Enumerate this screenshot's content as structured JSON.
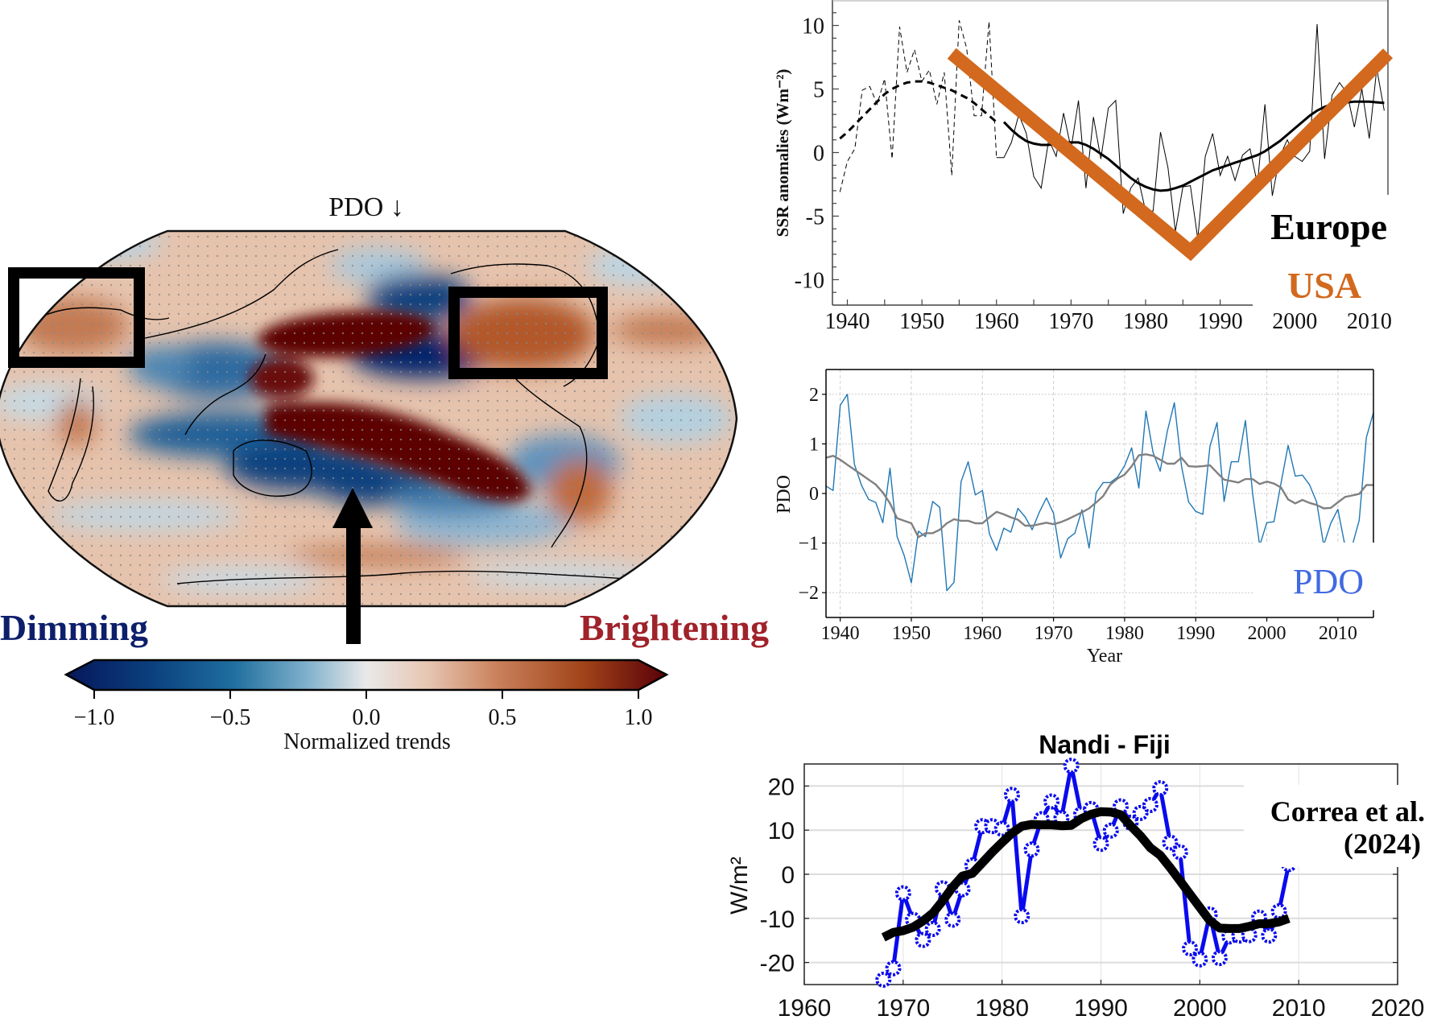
{
  "map_panel": {
    "title": "PDO ↓",
    "dimming_label": "Dimming",
    "brightening_label": "Brightening",
    "dimming_color": "#0d1f6b",
    "brightening_color": "#a0222a",
    "highlight_boxes": [
      "Europe region",
      "USA region"
    ],
    "arrow": "points to tropical Pacific",
    "colorbar": {
      "label": "Normalized trends",
      "ticks": [
        "−1.0",
        "−0.5",
        "0.0",
        "0.5",
        "1.0"
      ],
      "tick_values": [
        -1.0,
        -0.5,
        0.0,
        0.5,
        1.0
      ],
      "range": [
        -1.0,
        1.0
      ],
      "extend": "both",
      "colors": [
        "#06175a",
        "#0b3f7e",
        "#1f6f9f",
        "#7fb0cb",
        "#e9e9e9",
        "#e7c7b4",
        "#c9805a",
        "#a2441a",
        "#5a0008"
      ]
    }
  },
  "chart_data": [
    {
      "id": "ssr",
      "type": "line",
      "title": "",
      "xlabel": "",
      "ylabel": "SSR anomalies (Wm⁻²)",
      "xlim": [
        1938,
        2012.5
      ],
      "ylim": [
        -12,
        12
      ],
      "xticks": [
        1940,
        1950,
        1960,
        1970,
        1980,
        1990,
        2000,
        2010
      ],
      "yticks": [
        10,
        5,
        0,
        -5,
        -10
      ],
      "ytick_labels": [
        "10",
        "5",
        "0",
        "-5",
        "-10"
      ],
      "grid": false,
      "annotations": [
        {
          "text": "Europe",
          "color": "#000000"
        },
        {
          "text": "USA",
          "color": "#d2691e"
        }
      ],
      "series": [
        {
          "name": "annual (early, dashed)",
          "style": "dashed-thin",
          "color": "#000000",
          "x": [
            1939,
            1940,
            1941,
            1942,
            1943,
            1944,
            1945,
            1946,
            1947,
            1948,
            1949,
            1950,
            1951,
            1952,
            1953,
            1954,
            1955,
            1956,
            1957,
            1958,
            1959,
            1960
          ],
          "y": [
            -3.1,
            -0.7,
            0.3,
            4.9,
            5.2,
            3.8,
            5.8,
            -0.5,
            9.9,
            6.3,
            8.1,
            5.6,
            6.5,
            3.8,
            6.3,
            -1.8,
            10.4,
            8.2,
            2.9,
            2.9,
            10.3,
            -0.4
          ]
        },
        {
          "name": "annual (solid)",
          "style": "solid-thin",
          "color": "#000000",
          "x": [
            1960,
            1961,
            1962,
            1963,
            1964,
            1965,
            1966,
            1967,
            1968,
            1969,
            1970,
            1971,
            1972,
            1973,
            1974,
            1975,
            1976,
            1977,
            1978,
            1979,
            1980,
            1981,
            1982,
            1983,
            1984,
            1985,
            1986,
            1987,
            1988,
            1989,
            1990,
            1991,
            1992,
            1993,
            1994,
            1995,
            1996,
            1997,
            1998,
            1999,
            2000,
            2001,
            2002,
            2003,
            2004,
            2005,
            2006,
            2007,
            2008,
            2009,
            2010,
            2011,
            2012
          ],
          "y": [
            -0.4,
            -0.4,
            0.8,
            3.0,
            1.5,
            -1.9,
            -2.8,
            1.0,
            -0.3,
            3.1,
            0.3,
            4.1,
            -2.8,
            2.8,
            -0.5,
            3.5,
            4.1,
            -4.8,
            -2.8,
            -2.0,
            -4.6,
            -4.6,
            1.6,
            -1.2,
            -6.2,
            -2.7,
            -2.6,
            -6.8,
            -0.3,
            1.5,
            -1.8,
            -0.3,
            -2.2,
            -0.2,
            0.3,
            -2.5,
            3.8,
            -3.4,
            -0.3,
            1.0,
            -0.3,
            -0.7,
            0.1,
            10.1,
            -0.5,
            4.5,
            5.5,
            4.7,
            2.0,
            5.0,
            1.1,
            6.6,
            3.3
          ]
        },
        {
          "name": "smoothed (early, dashed)",
          "style": "dashed-thick",
          "color": "#000000",
          "x": [
            1939,
            1940,
            1941,
            1942,
            1943,
            1944,
            1945,
            1946,
            1947,
            1948,
            1949,
            1950,
            1951,
            1952,
            1953,
            1954,
            1955,
            1956,
            1957,
            1958,
            1959,
            1960
          ],
          "y": [
            1.1,
            1.6,
            2.2,
            2.8,
            3.4,
            4.0,
            4.6,
            5.0,
            5.3,
            5.5,
            5.6,
            5.6,
            5.5,
            5.3,
            5.1,
            4.9,
            4.6,
            4.3,
            3.9,
            3.4,
            2.9,
            2.4
          ]
        },
        {
          "name": "smoothed (solid)",
          "style": "solid-thick",
          "color": "#000000",
          "x": [
            1961,
            1962,
            1963,
            1964,
            1965,
            1966,
            1967,
            1968,
            1969,
            1970,
            1971,
            1972,
            1973,
            1974,
            1975,
            1976,
            1977,
            1978,
            1979,
            1980,
            1981,
            1982,
            1983,
            1984,
            1985,
            1986,
            1987,
            1988,
            1989,
            1990,
            1991,
            1992,
            1993,
            1994,
            1995,
            1996,
            1997,
            1998,
            1999,
            2000,
            2001,
            2002,
            2003,
            2004,
            2005,
            2006,
            2007,
            2008,
            2009,
            2010,
            2011,
            2012
          ],
          "y": [
            2.4,
            1.8,
            1.3,
            0.9,
            0.7,
            0.6,
            0.6,
            0.7,
            0.8,
            0.8,
            0.8,
            0.6,
            0.3,
            -0.1,
            -0.5,
            -1.0,
            -1.5,
            -2.0,
            -2.4,
            -2.7,
            -2.9,
            -3.0,
            -2.95,
            -2.8,
            -2.6,
            -2.3,
            -2.0,
            -1.7,
            -1.4,
            -1.2,
            -1.0,
            -0.8,
            -0.6,
            -0.4,
            -0.2,
            0.1,
            0.5,
            0.9,
            1.4,
            1.9,
            2.4,
            2.9,
            3.3,
            3.6,
            3.8,
            3.9,
            3.95,
            4.0,
            4.0,
            4.0,
            3.95,
            3.9
          ]
        },
        {
          "name": "USA trend (V)",
          "style": "overlay-thick",
          "color": "#d2691e",
          "x": [
            1954,
            1986,
            2012.5
          ],
          "y": [
            7.8,
            -7.8,
            7.8
          ]
        }
      ]
    },
    {
      "id": "pdo",
      "type": "line",
      "title": "",
      "xlabel": "Year",
      "ylabel": "PDO",
      "xlim": [
        1938,
        2015
      ],
      "ylim": [
        -2.5,
        2.5
      ],
      "xticks": [
        1940,
        1950,
        1960,
        1970,
        1980,
        1990,
        2000,
        2010
      ],
      "yticks": [
        2,
        1,
        0,
        -1,
        -2
      ],
      "ytick_labels": [
        "2",
        "1",
        "0",
        "−1",
        "−2"
      ],
      "grid": true,
      "annotations": [
        {
          "text": "PDO",
          "color": "#4169e1"
        }
      ],
      "series": [
        {
          "name": "PDO annual",
          "color": "#1f77b4",
          "x": [
            1938,
            1939,
            1940,
            1941,
            1942,
            1943,
            1944,
            1945,
            1946,
            1947,
            1948,
            1949,
            1950,
            1951,
            1952,
            1953,
            1954,
            1955,
            1956,
            1957,
            1958,
            1959,
            1960,
            1961,
            1962,
            1963,
            1964,
            1965,
            1966,
            1967,
            1968,
            1969,
            1970,
            1971,
            1972,
            1973,
            1974,
            1975,
            1976,
            1977,
            1978,
            1979,
            1980,
            1981,
            1982,
            1983,
            1984,
            1985,
            1986,
            1987,
            1988,
            1989,
            1990,
            1991,
            1992,
            1993,
            1994,
            1995,
            1996,
            1997,
            1998,
            1999,
            2000,
            2001,
            2002,
            2003,
            2004,
            2005,
            2006,
            2007,
            2008,
            2009,
            2010,
            2011,
            2012,
            2013,
            2014,
            2015
          ],
          "y": [
            0.15,
            0.06,
            1.78,
            2.0,
            0.59,
            0.16,
            -0.12,
            -0.18,
            -0.59,
            0.51,
            -0.87,
            -1.25,
            -1.8,
            -0.76,
            -0.87,
            -0.16,
            -0.28,
            -1.96,
            -1.79,
            0.24,
            0.64,
            -0.03,
            0.06,
            -0.82,
            -1.15,
            -0.7,
            -0.78,
            -0.3,
            -0.47,
            -0.73,
            -0.38,
            -0.09,
            -0.4,
            -1.3,
            -0.91,
            -0.8,
            -0.33,
            -1.1,
            0.02,
            0.22,
            0.22,
            0.33,
            0.56,
            0.92,
            0.11,
            1.66,
            0.83,
            0.45,
            1.25,
            1.83,
            0.55,
            -0.17,
            -0.36,
            -0.42,
            0.95,
            1.43,
            -0.16,
            0.64,
            0.64,
            1.47,
            0.0,
            -1.05,
            -0.59,
            -0.57,
            0.21,
            0.97,
            0.35,
            0.37,
            0.18,
            -0.17,
            -1.04,
            -0.6,
            -0.32,
            -1.06,
            -1.06,
            -0.54,
            1.13,
            1.63
          ]
        },
        {
          "name": "PDO smoothed",
          "color": "#808080",
          "x": [
            1938,
            1939,
            1940,
            1941,
            1942,
            1943,
            1944,
            1945,
            1946,
            1947,
            1948,
            1949,
            1950,
            1951,
            1952,
            1953,
            1954,
            1955,
            1956,
            1957,
            1958,
            1959,
            1960,
            1961,
            1962,
            1963,
            1964,
            1965,
            1966,
            1967,
            1968,
            1969,
            1970,
            1971,
            1972,
            1973,
            1974,
            1975,
            1976,
            1977,
            1978,
            1979,
            1980,
            1981,
            1982,
            1983,
            1984,
            1985,
            1986,
            1987,
            1988,
            1989,
            1990,
            1991,
            1992,
            1993,
            1994,
            1995,
            1996,
            1997,
            1998,
            1999,
            2000,
            2001,
            2002,
            2003,
            2004,
            2005,
            2006,
            2007,
            2008,
            2009,
            2010,
            2011,
            2012,
            2013,
            2014,
            2015
          ],
          "y": [
            0.72,
            0.76,
            0.68,
            0.58,
            0.48,
            0.38,
            0.28,
            0.18,
            0.02,
            -0.2,
            -0.5,
            -0.55,
            -0.6,
            -0.88,
            -0.8,
            -0.8,
            -0.73,
            -0.6,
            -0.52,
            -0.55,
            -0.55,
            -0.6,
            -0.6,
            -0.48,
            -0.37,
            -0.42,
            -0.48,
            -0.53,
            -0.65,
            -0.65,
            -0.62,
            -0.59,
            -0.62,
            -0.58,
            -0.52,
            -0.45,
            -0.38,
            -0.3,
            -0.18,
            -0.05,
            0.18,
            0.3,
            0.38,
            0.55,
            0.77,
            0.79,
            0.76,
            0.68,
            0.6,
            0.6,
            0.72,
            0.55,
            0.54,
            0.55,
            0.57,
            0.42,
            0.28,
            0.25,
            0.22,
            0.29,
            0.29,
            0.19,
            0.24,
            0.2,
            0.12,
            -0.12,
            -0.2,
            -0.13,
            -0.19,
            -0.23,
            -0.3,
            -0.29,
            -0.18,
            -0.07,
            -0.04,
            -0.01,
            0.17,
            0.17
          ]
        }
      ]
    },
    {
      "id": "fiji",
      "type": "line",
      "title": "Nandi - Fiji",
      "xlabel": "",
      "ylabel": "W/m²",
      "xlim": [
        1960,
        2020
      ],
      "ylim": [
        -25,
        25
      ],
      "xticks": [
        1960,
        1970,
        1980,
        1990,
        2000,
        2010,
        2020
      ],
      "yticks": [
        20,
        10,
        0,
        -10,
        -20
      ],
      "ytick_labels": [
        "20",
        "10",
        "0",
        "-10",
        "-20"
      ],
      "grid": true,
      "annotations": [
        {
          "text": "Correa et al.",
          "color": "#000000"
        },
        {
          "text": "(2024)",
          "color": "#000000"
        }
      ],
      "series": [
        {
          "name": "annual",
          "color": "#0a0aee",
          "marker": "circle",
          "x": [
            1968,
            1969,
            1970,
            1971,
            1972,
            1973,
            1974,
            1975,
            1976,
            1977,
            1978,
            1979,
            1980,
            1981,
            1982,
            1983,
            1984,
            1985,
            1986,
            1987,
            1988,
            1989,
            1990,
            1991,
            1992,
            1993,
            1994,
            1995,
            1996,
            1997,
            1998,
            1999,
            2000,
            2001,
            2002,
            2003,
            2004,
            2005,
            2006,
            2007,
            2008,
            2009
          ],
          "y": [
            -23.9,
            -21.3,
            -4.3,
            -10.3,
            -14.9,
            -12.4,
            -3.2,
            -10.3,
            -3.4,
            2.0,
            10.9,
            10.9,
            10.3,
            18.0,
            -9.5,
            5.6,
            12.5,
            16.5,
            12.7,
            24.6,
            13.6,
            14.8,
            6.9,
            9.9,
            15.4,
            11.7,
            13.9,
            15.7,
            19.5,
            7.2,
            5.0,
            -16.8,
            -19.3,
            -9.1,
            -19.0,
            -14.1,
            -13.9,
            -13.8,
            -9.8,
            -13.9,
            -8.4,
            2.3
          ]
        },
        {
          "name": "smoothed",
          "color": "#000000",
          "x": [
            1968,
            1969,
            1970,
            1971,
            1972,
            1973,
            1974,
            1975,
            1976,
            1977,
            1978,
            1979,
            1980,
            1981,
            1982,
            1983,
            1984,
            1985,
            1986,
            1987,
            1988,
            1989,
            1990,
            1991,
            1992,
            1993,
            1994,
            1995,
            1996,
            1997,
            1998,
            1999,
            2000,
            2001,
            2002,
            2003,
            2004,
            2005,
            2006,
            2007,
            2008,
            2009
          ],
          "y": [
            -14.3,
            -13.2,
            -12.8,
            -12.0,
            -10.6,
            -8.8,
            -6.0,
            -2.9,
            -0.4,
            0.2,
            2.6,
            5.0,
            7.2,
            9.3,
            10.9,
            11.3,
            11.2,
            11.2,
            11.0,
            11.1,
            12.6,
            13.6,
            14.2,
            14.1,
            13.5,
            11.0,
            8.7,
            6.0,
            4.3,
            1.5,
            -1.5,
            -4.5,
            -7.5,
            -10.5,
            -12.2,
            -12.3,
            -12.3,
            -11.8,
            -11.2,
            -11.2,
            -10.8,
            -10.0
          ]
        }
      ]
    }
  ]
}
